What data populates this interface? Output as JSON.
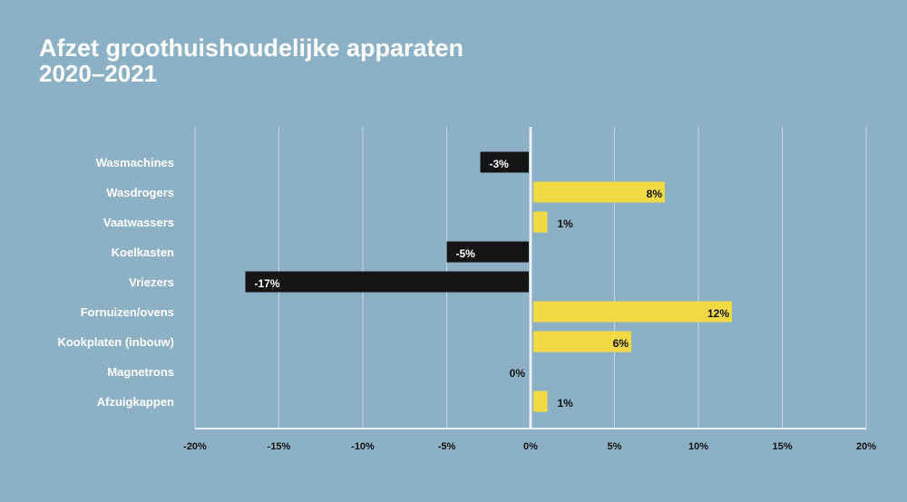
{
  "colors": {
    "background": "#8db1c4",
    "positive": "#f2da45",
    "negative": "#141414",
    "grid": "#c5d8e2",
    "axis": "#e9eff3"
  },
  "chart_data": {
    "type": "bar",
    "orientation": "horizontal",
    "title": "Afzet groothuishoudelijke apparaten",
    "subtitle": "2020–2021",
    "categories": [
      "Wasmachines",
      "Wasdrogers",
      "Vaatwassers",
      "Koelkasten",
      "Vriezers",
      "Fornuizen/ovens",
      "Kookplaten (inbouw)",
      "Magnetrons",
      "Afzuigkappen"
    ],
    "values": [
      -3,
      8,
      1,
      -5,
      -17,
      12,
      6,
      0,
      1
    ],
    "data_labels": [
      "-3%",
      "8%",
      "1%",
      "-5%",
      "-17%",
      "12%",
      "6%",
      "0%",
      "1%"
    ],
    "xlim": [
      -20,
      20
    ],
    "xticks": [
      -20,
      -15,
      -10,
      -5,
      0,
      5,
      10,
      15,
      20
    ],
    "xtick_labels": [
      "-20%",
      "-15%",
      "-10%",
      "-5%",
      "0%",
      "5%",
      "10%",
      "15%",
      "20%"
    ],
    "xlabel": "",
    "ylabel": "",
    "grid": true
  }
}
